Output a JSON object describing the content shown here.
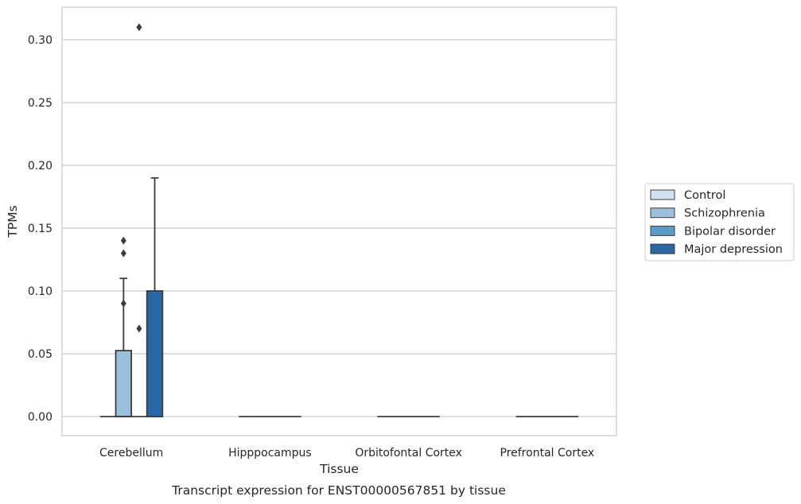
{
  "chart_data": {
    "type": "box",
    "title": "",
    "caption": "Transcript expression for ENST00000567851 by tissue",
    "xlabel": "Tissue",
    "ylabel": "TPMs",
    "ylim": [
      -0.015,
      0.326
    ],
    "yticks": [
      0.0,
      0.05,
      0.1,
      0.15,
      0.2,
      0.25,
      0.3
    ],
    "ytick_labels": [
      "0.00",
      "0.05",
      "0.10",
      "0.15",
      "0.20",
      "0.25",
      "0.30"
    ],
    "grid": "horizontal",
    "legend_position": "right",
    "categories": [
      "Cerebellum",
      "Hipppocampus",
      "Orbitofontal Cortex",
      "Prefrontal Cortex"
    ],
    "series": [
      {
        "name": "Control",
        "color": "#d0e1f2",
        "boxes": [
          {
            "q1": 0,
            "median": 0,
            "q3": 0,
            "whisker_low": 0,
            "whisker_high": 0,
            "outliers": []
          },
          {
            "q1": 0,
            "median": 0,
            "q3": 0,
            "whisker_low": 0,
            "whisker_high": 0,
            "outliers": []
          },
          {
            "q1": 0,
            "median": 0,
            "q3": 0,
            "whisker_low": 0,
            "whisker_high": 0,
            "outliers": []
          },
          {
            "q1": 0,
            "median": 0,
            "q3": 0,
            "whisker_low": 0,
            "whisker_high": 0,
            "outliers": []
          }
        ]
      },
      {
        "name": "Schizophrenia",
        "color": "#9ac0db",
        "boxes": [
          {
            "q1": 0,
            "median": 0,
            "q3": 0.0525,
            "whisker_low": 0,
            "whisker_high": 0.11,
            "outliers": [
              0.13,
              0.14,
              0.09
            ]
          },
          {
            "q1": 0,
            "median": 0,
            "q3": 0,
            "whisker_low": 0,
            "whisker_high": 0,
            "outliers": []
          },
          {
            "q1": 0,
            "median": 0,
            "q3": 0,
            "whisker_low": 0,
            "whisker_high": 0,
            "outliers": []
          },
          {
            "q1": 0,
            "median": 0,
            "q3": 0,
            "whisker_low": 0,
            "whisker_high": 0,
            "outliers": []
          }
        ]
      },
      {
        "name": "Bipolar disorder",
        "color": "#5b9bc8",
        "boxes": [
          {
            "q1": 0,
            "median": 0,
            "q3": 0,
            "whisker_low": 0,
            "whisker_high": 0,
            "outliers": [
              0.07,
              0.31
            ]
          },
          {
            "q1": 0,
            "median": 0,
            "q3": 0,
            "whisker_low": 0,
            "whisker_high": 0,
            "outliers": []
          },
          {
            "q1": 0,
            "median": 0,
            "q3": 0,
            "whisker_low": 0,
            "whisker_high": 0,
            "outliers": []
          },
          {
            "q1": 0,
            "median": 0,
            "q3": 0,
            "whisker_low": 0,
            "whisker_high": 0,
            "outliers": []
          }
        ]
      },
      {
        "name": "Major depression",
        "color": "#2a67a4",
        "boxes": [
          {
            "q1": 0,
            "median": 0,
            "q3": 0.1,
            "whisker_low": 0,
            "whisker_high": 0.19,
            "outliers": []
          },
          {
            "q1": 0,
            "median": 0,
            "q3": 0,
            "whisker_low": 0,
            "whisker_high": 0,
            "outliers": []
          },
          {
            "q1": 0,
            "median": 0,
            "q3": 0,
            "whisker_low": 0,
            "whisker_high": 0,
            "outliers": []
          },
          {
            "q1": 0,
            "median": 0,
            "q3": 0,
            "whisker_low": 0,
            "whisker_high": 0,
            "outliers": []
          }
        ]
      }
    ]
  }
}
